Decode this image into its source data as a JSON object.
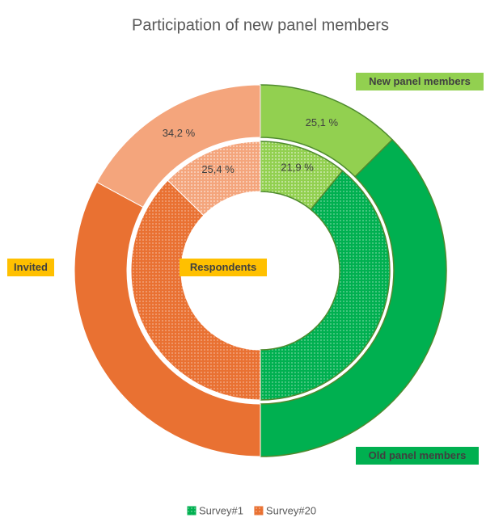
{
  "chart_data": {
    "type": "donut",
    "title": "Participation of new panel members",
    "categories": [
      "New panel members",
      "Old panel members"
    ],
    "series": [
      {
        "name": "Survey#1",
        "colors": [
          "#92d050",
          "#00b050"
        ]
      },
      {
        "name": "Survey#20",
        "colors": [
          "#f4a57c",
          "#e97132"
        ]
      }
    ],
    "rings": [
      {
        "name": "Invited",
        "values": [
          [
            25.1,
            74.9
          ],
          [
            34.2,
            65.8
          ]
        ],
        "value_labels": [
          [
            "25,1 %",
            null
          ],
          [
            "34,2 %",
            null
          ]
        ]
      },
      {
        "name": "Respondents",
        "values": [
          [
            21.9,
            78.1
          ],
          [
            25.4,
            74.6
          ]
        ],
        "value_labels": [
          [
            "21,9 %",
            null
          ],
          [
            "25,4 %",
            null
          ]
        ]
      }
    ],
    "legend": "bottom"
  }
}
